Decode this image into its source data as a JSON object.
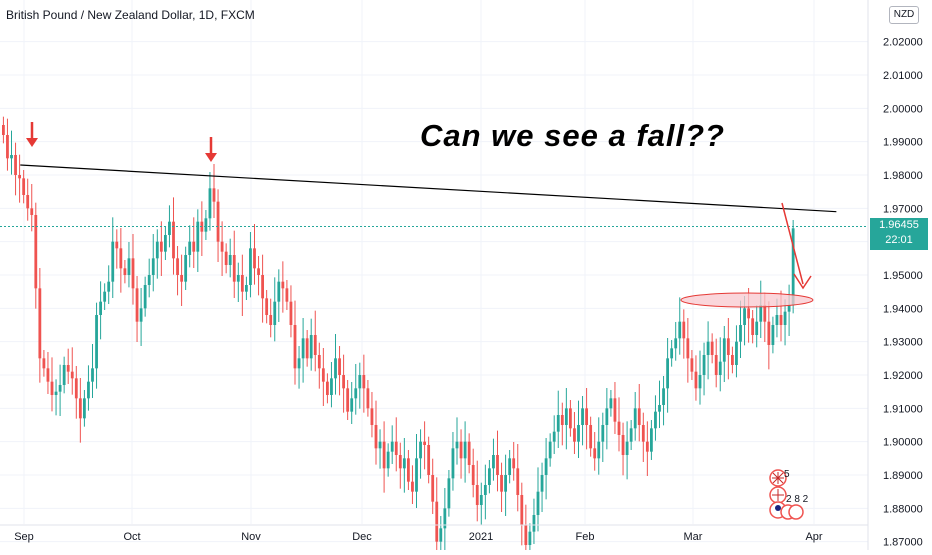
{
  "header": {
    "symbol_title": "British Pound / New Zealand Dollar, 1D, FXCM",
    "currency_badge": "NZD"
  },
  "annotation": {
    "text": "Can we see a fall??"
  },
  "last_price": {
    "price": "1.96455",
    "countdown": "22:01"
  },
  "event_markers": {
    "count_a": "5",
    "count_b": "2 8 2"
  },
  "colors": {
    "up": "#26a69a",
    "down": "#ef5350",
    "arrow": "#e53935",
    "trendline": "#000000",
    "ellipse_fill": "#f8c8cf",
    "ellipse_stroke": "#e53935"
  },
  "chart_data": {
    "type": "candlestick",
    "title": "British Pound / New Zealand Dollar, 1D, FXCM",
    "y_tick_labels": [
      "2.02000",
      "2.01000",
      "2.00000",
      "1.99000",
      "1.98000",
      "1.97000",
      "1.96000",
      "1.95000",
      "1.94000",
      "1.93000",
      "1.92000",
      "1.91000",
      "1.90000",
      "1.89000",
      "1.88000",
      "1.87000"
    ],
    "ylim": [
      1.8675,
      2.0325
    ],
    "x_tick_labels": [
      "Sep",
      "Oct",
      "Nov",
      "Dec",
      "2021",
      "Feb",
      "Mar",
      "Apr"
    ],
    "last_price": 1.96455,
    "trendline": {
      "from": [
        "2020-08-31",
        1.983
      ],
      "to": [
        "2021-04-07",
        1.969
      ]
    },
    "target_zone": {
      "center": [
        "2021-03-14",
        1.9425
      ]
    },
    "closes": [
      1.992,
      1.985,
      1.986,
      1.98,
      1.979,
      1.974,
      1.97,
      1.968,
      1.946,
      1.925,
      1.922,
      1.918,
      1.914,
      1.915,
      1.917,
      1.923,
      1.921,
      1.919,
      1.913,
      1.907,
      1.913,
      1.918,
      1.922,
      1.938,
      1.942,
      1.945,
      1.948,
      1.96,
      1.958,
      1.952,
      1.95,
      1.955,
      1.946,
      1.936,
      1.94,
      1.947,
      1.95,
      1.955,
      1.96,
      1.957,
      1.962,
      1.966,
      1.955,
      1.95,
      1.948,
      1.956,
      1.96,
      1.957,
      1.966,
      1.963,
      1.967,
      1.976,
      1.972,
      1.96,
      1.957,
      1.953,
      1.956,
      1.948,
      1.95,
      1.945,
      1.947,
      1.958,
      1.952,
      1.95,
      1.943,
      1.938,
      1.935,
      1.942,
      1.948,
      1.946,
      1.942,
      1.935,
      1.922,
      1.925,
      1.931,
      1.925,
      1.932,
      1.926,
      1.922,
      1.918,
      1.914,
      1.919,
      1.925,
      1.92,
      1.916,
      1.909,
      1.913,
      1.916,
      1.92,
      1.916,
      1.91,
      1.905,
      1.898,
      1.9,
      1.892,
      1.897,
      1.9,
      1.896,
      1.892,
      1.895,
      1.888,
      1.885,
      1.895,
      1.9,
      1.899,
      1.89,
      1.882,
      1.87,
      1.874,
      1.88,
      1.889,
      1.898,
      1.9,
      1.895,
      1.9,
      1.893,
      1.887,
      1.881,
      1.884,
      1.887,
      1.892,
      1.896,
      1.89,
      1.885,
      1.89,
      1.895,
      1.892,
      1.884,
      1.875,
      1.869,
      1.873,
      1.878,
      1.885,
      1.89,
      1.895,
      1.9,
      1.903,
      1.908,
      1.905,
      1.91,
      1.904,
      1.9,
      1.905,
      1.91,
      1.905,
      1.898,
      1.895,
      1.9,
      1.905,
      1.91,
      1.913,
      1.906,
      1.902,
      1.896,
      1.9,
      1.904,
      1.91,
      1.905,
      1.9,
      1.897,
      1.904,
      1.909,
      1.911,
      1.916,
      1.925,
      1.928,
      1.931,
      1.936,
      1.931,
      1.925,
      1.921,
      1.916,
      1.92,
      1.926,
      1.93,
      1.926,
      1.92,
      1.924,
      1.931,
      1.926,
      1.923,
      1.93,
      1.935,
      1.94,
      1.937,
      1.932,
      1.936,
      1.941,
      1.936,
      1.929,
      1.935,
      1.938,
      1.935,
      1.939,
      1.941,
      1.964
    ]
  }
}
